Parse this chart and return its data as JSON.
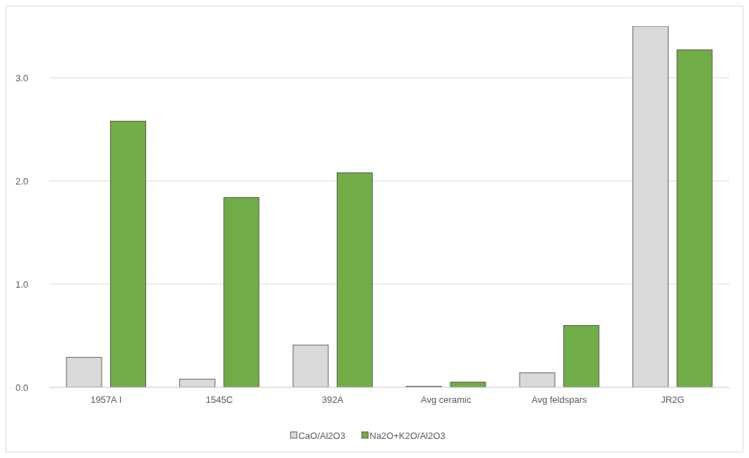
{
  "chart_data": {
    "type": "bar",
    "categories": [
      "1957A I",
      "1545C",
      "392A",
      "Avg ceramic",
      "Avg feldspars",
      "JR2G"
    ],
    "series": [
      {
        "name": "CaO/Al2O3",
        "color": "#d9d9d9",
        "values": [
          0.29,
          0.08,
          0.41,
          0.01,
          0.14,
          3.5
        ]
      },
      {
        "name": "Na2O+K2O/Al2O3",
        "color": "#70ad47",
        "values": [
          2.58,
          1.84,
          2.08,
          0.05,
          0.6,
          3.27
        ]
      }
    ],
    "ylim": [
      0,
      3.5
    ],
    "yticks": [
      {
        "value": 0,
        "label": "0.0"
      },
      {
        "value": 1,
        "label": "1.0"
      },
      {
        "value": 2,
        "label": "2.0"
      },
      {
        "value": 3,
        "label": "3.0"
      }
    ],
    "grid": "y",
    "legend": "bottom"
  }
}
